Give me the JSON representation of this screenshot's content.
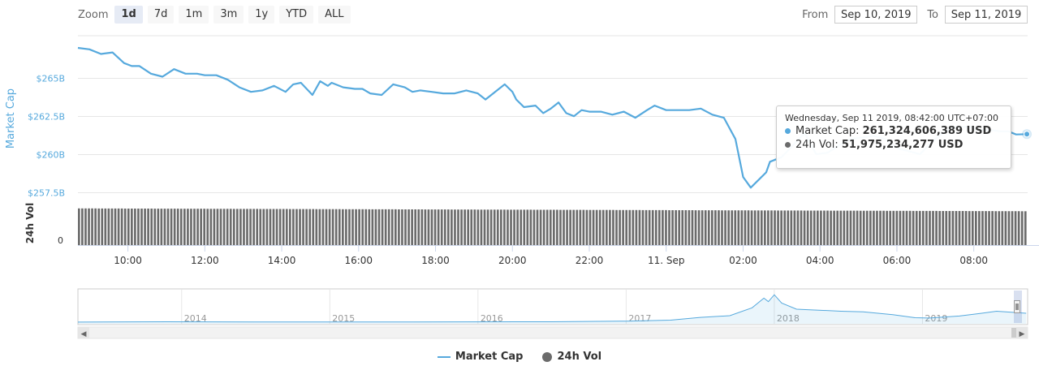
{
  "zoom": {
    "label": "Zoom",
    "buttons": [
      "1d",
      "7d",
      "1m",
      "3m",
      "1y",
      "YTD",
      "ALL"
    ],
    "active": "1d"
  },
  "range": {
    "from_label": "From",
    "from_value": "Sep 10, 2019",
    "to_label": "To",
    "to_value": "Sep 11, 2019"
  },
  "colors": {
    "market_cap": "#56a9dd",
    "volume": "#6b6b6b",
    "navigator": "#56a9dd",
    "grid": "#e6e6e6",
    "ylabel": "#56a9dd"
  },
  "chart_data": [
    {
      "type": "line",
      "title": "",
      "xlabel": "",
      "ylabel": "Market Cap",
      "ylim": [
        256.9,
        267.8
      ],
      "y_ticks": [
        257.5,
        260,
        262.5,
        265
      ],
      "y_tick_labels": [
        "$257.5B",
        "$260B",
        "$262.5B",
        "$265B"
      ],
      "y_unit": "billion USD",
      "x_ticks": [
        10,
        12,
        14,
        16,
        18,
        20,
        22,
        24,
        26,
        28,
        30,
        32
      ],
      "x_tick_labels": [
        "10:00",
        "12:00",
        "14:00",
        "16:00",
        "18:00",
        "20:00",
        "22:00",
        "11. Sep",
        "02:00",
        "04:00",
        "06:00",
        "08:00"
      ],
      "x_unit": "hours since Sep 10, 2019 00:00 (UTC+07:00)",
      "xlim": [
        8.7,
        33.4
      ],
      "grid": true,
      "series": [
        {
          "name": "Market Cap",
          "x": [
            8.7,
            9.0,
            9.3,
            9.6,
            9.9,
            10.1,
            10.3,
            10.6,
            10.9,
            11.2,
            11.5,
            11.8,
            12.0,
            12.3,
            12.6,
            12.9,
            13.2,
            13.5,
            13.8,
            14.1,
            14.3,
            14.5,
            14.8,
            15.0,
            15.2,
            15.3,
            15.6,
            15.9,
            16.1,
            16.3,
            16.6,
            16.9,
            17.2,
            17.4,
            17.6,
            17.9,
            18.2,
            18.5,
            18.8,
            19.1,
            19.3,
            19.5,
            19.6,
            19.8,
            20.0,
            20.1,
            20.3,
            20.6,
            20.8,
            21.0,
            21.2,
            21.4,
            21.6,
            21.8,
            22.0,
            22.3,
            22.6,
            22.9,
            23.2,
            23.5,
            23.7,
            24.0,
            24.3,
            24.6,
            24.9,
            25.2,
            25.5,
            25.8,
            26.0,
            26.2,
            26.4,
            26.6,
            26.7,
            27.0,
            27.3,
            27.6,
            27.9,
            28.2,
            28.5,
            28.8,
            29.1,
            29.4,
            29.7,
            30.0,
            30.3,
            30.6,
            30.9,
            31.1,
            31.4,
            31.6,
            31.9,
            32.1,
            32.4,
            32.7,
            32.9,
            33.1,
            33.4
          ],
          "y": [
            267.0,
            266.9,
            266.6,
            266.7,
            266.0,
            265.8,
            265.8,
            265.3,
            265.1,
            265.6,
            265.3,
            265.3,
            265.2,
            265.2,
            264.9,
            264.4,
            264.1,
            264.2,
            264.5,
            264.1,
            264.6,
            264.7,
            263.9,
            264.8,
            264.5,
            264.7,
            264.4,
            264.3,
            264.3,
            264.0,
            263.9,
            264.6,
            264.4,
            264.1,
            264.2,
            264.1,
            264.0,
            264.0,
            264.2,
            264.0,
            263.6,
            264.0,
            264.2,
            264.6,
            264.1,
            263.6,
            263.1,
            263.2,
            262.7,
            263.0,
            263.4,
            262.7,
            262.5,
            262.9,
            262.8,
            262.8,
            262.6,
            262.8,
            262.4,
            262.9,
            263.2,
            262.9,
            262.9,
            262.9,
            263.0,
            262.6,
            262.4,
            261.0,
            258.5,
            257.8,
            258.3,
            258.8,
            259.5,
            259.8,
            260.6,
            261.4,
            260.0,
            260.1,
            260.6,
            261.0,
            261.1,
            261.2,
            261.0,
            260.4,
            260.2,
            260.0,
            260.8,
            261.2,
            261.7,
            261.8,
            261.8,
            261.6,
            261.6,
            261.5,
            261.5,
            261.3,
            261.32
          ]
        }
      ]
    },
    {
      "type": "bar",
      "title": "",
      "xlabel": "",
      "ylabel": "24h Vol",
      "y_tick_labels": [
        "0"
      ],
      "ylim": [
        0,
        58
      ],
      "series": [
        {
          "name": "24h Vol",
          "values_billion_usd_range": [
            51.5,
            55.8
          ],
          "x_range": [
            8.7,
            33.4
          ],
          "bar_count": 288
        }
      ]
    },
    {
      "type": "area",
      "title": "",
      "role": "navigator",
      "x_tick_labels": [
        "2014",
        "2015",
        "2016",
        "2017",
        "2018",
        "2019"
      ],
      "xlim": [
        2013.3,
        2019.71
      ],
      "ylim": [
        0,
        900
      ],
      "series": [
        {
          "name": "Market Cap",
          "x": [
            2013.3,
            2013.9,
            2014.5,
            2015.5,
            2016.5,
            2017.0,
            2017.3,
            2017.5,
            2017.7,
            2017.85,
            2017.93,
            2017.96,
            2018.0,
            2018.05,
            2018.15,
            2018.3,
            2018.45,
            2018.6,
            2018.8,
            2018.95,
            2019.05,
            2019.25,
            2019.4,
            2019.5,
            2019.6,
            2019.7
          ],
          "y": [
            2,
            12,
            8,
            6,
            12,
            30,
            60,
            140,
            190,
            420,
            700,
            600,
            800,
            560,
            380,
            350,
            320,
            300,
            220,
            130,
            120,
            180,
            260,
            320,
            290,
            261
          ]
        }
      ]
    }
  ],
  "axis_titles": {
    "market_cap": "Market Cap",
    "volume": "24h Vol"
  },
  "tooltip": {
    "header": "Wednesday, Sep 11 2019, 08:42:00 UTC+07:00",
    "rows": [
      {
        "label": "Market Cap:",
        "value": "261,324,606,389 USD"
      },
      {
        "label": "24h Vol:",
        "value": "51,975,234,277 USD"
      }
    ],
    "hover_x": 33.38,
    "hover_y": 261.32
  },
  "legend": [
    {
      "name": "Market Cap",
      "symbol": "line"
    },
    {
      "name": "24h Vol",
      "symbol": "dot"
    }
  ],
  "scrollbar": {
    "left_arrow": "◀",
    "right_arrow": "▶"
  }
}
